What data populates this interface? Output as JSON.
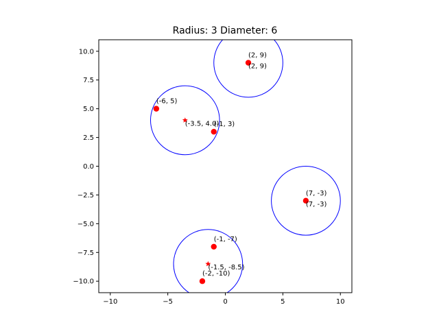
{
  "chart_data": {
    "type": "scatter",
    "title": "Radius: 3 Diameter: 6",
    "xlabel": "",
    "ylabel": "",
    "xlim": [
      -11,
      11
    ],
    "ylim": [
      -11,
      11
    ],
    "xticks": [
      -10,
      -5,
      0,
      5,
      10
    ],
    "xtick_labels": [
      "−10",
      "−5",
      "0",
      "5",
      "10"
    ],
    "yticks": [
      -10.0,
      -7.5,
      -5.0,
      -2.5,
      0.0,
      2.5,
      5.0,
      7.5,
      10.0
    ],
    "ytick_labels": [
      "−10.0",
      "−7.5",
      "−5.0",
      "−2.5",
      "0.0",
      "2.5",
      "5.0",
      "7.5",
      "10.0"
    ],
    "grid": false,
    "radius": 3,
    "colors": {
      "points": "#ff0000",
      "circles": "#0000ff",
      "axes": "#000000"
    },
    "points": [
      {
        "x": -6,
        "y": 5,
        "label": "(-6, 5)"
      },
      {
        "x": -1,
        "y": 3,
        "label": "(-1, 3)"
      },
      {
        "x": 2,
        "y": 9,
        "label": "(2, 9)"
      },
      {
        "x": 7,
        "y": -3,
        "label": "(7, -3)"
      },
      {
        "x": -1,
        "y": -7,
        "label": "(-1, -7)"
      },
      {
        "x": -2,
        "y": -10,
        "label": "(-2, -10)"
      }
    ],
    "centers": [
      {
        "x": -3.5,
        "y": 4,
        "label": "(-3.5, 4.0)"
      },
      {
        "x": 2,
        "y": 9,
        "label": "(2, 9)"
      },
      {
        "x": 7,
        "y": -3,
        "label": "(7, -3)"
      },
      {
        "x": -1.5,
        "y": -8.5,
        "label": "(-1.5, -8.5)"
      }
    ]
  }
}
